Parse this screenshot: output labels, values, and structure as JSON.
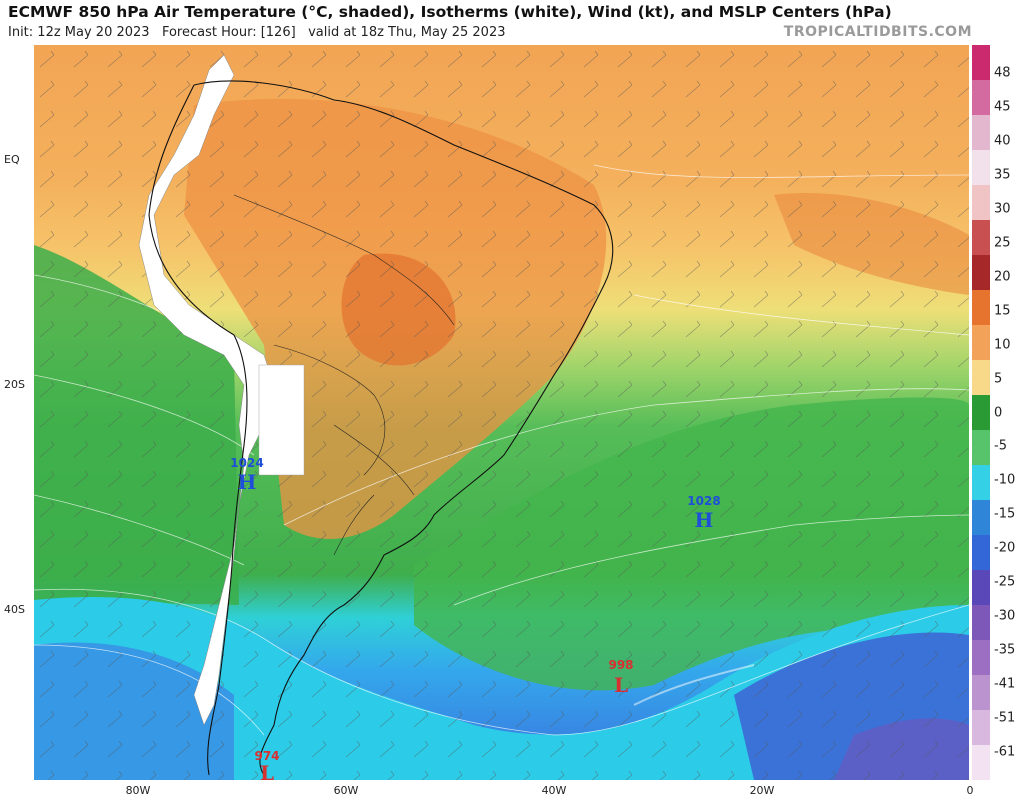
{
  "header": {
    "title": "ECMWF 850 hPa Air Temperature (°C, shaded), Isotherms (white), Wind (kt), and MSLP Centers (hPa)",
    "init": "Init: 12z May 20 2023",
    "forecast_hour": "Forecast Hour: [126]",
    "valid": "valid at 18z Thu, May 25 2023",
    "credit": "TROPICALTIDBITS.COM"
  },
  "axes": {
    "lat_labels": [
      "EQ",
      "20S",
      "40S"
    ],
    "lon_labels": [
      "80W",
      "60W",
      "40W",
      "20W",
      "0"
    ]
  },
  "pressure_centers": [
    {
      "type": "H",
      "value": "1024",
      "color": "#1f4fd8"
    },
    {
      "type": "H",
      "value": "1028",
      "color": "#1f4fd8"
    },
    {
      "type": "L",
      "value": "998",
      "color": "#d83030"
    },
    {
      "type": "L",
      "value": "974",
      "color": "#d83030"
    }
  ],
  "colorbar": {
    "labels": [
      "48",
      "45",
      "40",
      "35",
      "30",
      "25",
      "20",
      "15",
      "10",
      "5",
      "0",
      "-5",
      "-10",
      "-15",
      "-20",
      "-25",
      "-30",
      "-35",
      "-41",
      "-51",
      "-61"
    ],
    "colors": [
      "#cc2a6e",
      "#d36ba0",
      "#e3b8cf",
      "#f2e1ea",
      "#f0c4c4",
      "#c85050",
      "#a62828",
      "#e6732e",
      "#f3a25a",
      "#f8d98a",
      "#2a9a35",
      "#57c36a",
      "#34d0e6",
      "#2f86d8",
      "#3366d6",
      "#5a47b8",
      "#7d58b8",
      "#9c6fc2",
      "#bb93cf",
      "#d8b8df",
      "#f2e2f2"
    ]
  },
  "colors": {
    "cold_sea": "#28c6f0",
    "green": "#42b04a",
    "yellow": "#e8e06e",
    "orange": "#f0a04a",
    "dark_orange": "#e47a34",
    "andes_white": "#ffffff"
  }
}
